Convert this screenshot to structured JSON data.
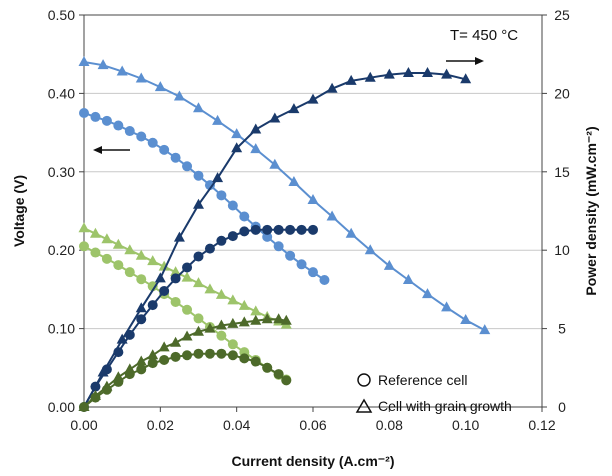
{
  "chart_data": {
    "type": "line",
    "xlabel": "Current density (A.cm⁻²)",
    "ylabel_left": "Voltage (V)",
    "ylabel_right": "Power density (mW.cm⁻²)",
    "xlim": [
      0,
      0.12
    ],
    "ylim_left": [
      0,
      0.5
    ],
    "ylim_right": [
      0,
      25
    ],
    "x_ticks": [
      "0.00",
      "0.02",
      "0.04",
      "0.06",
      "0.08",
      "0.10",
      "0.12"
    ],
    "y_left_ticks": [
      "0.00",
      "0.10",
      "0.20",
      "0.30",
      "0.40",
      "0.50"
    ],
    "y_right_ticks": [
      "0",
      "5",
      "10",
      "15",
      "20",
      "25"
    ],
    "annotation": "T= 450 °C",
    "legend": {
      "position": "bottom-right",
      "entries": [
        {
          "marker": "circle",
          "label": "Reference cell"
        },
        {
          "marker": "triangle",
          "label": "Cell with grain growth"
        }
      ]
    },
    "colors": {
      "light_blue": "#5b8fd0",
      "dark_navy": "#1a3a6b",
      "light_green": "#9dc46a",
      "dark_green": "#4d6a2a"
    },
    "series": [
      {
        "cell": "grain growth",
        "quantity": "voltage",
        "axis": "left",
        "marker": "triangle",
        "color": "#5b8fd0",
        "x": [
          0.0,
          0.005,
          0.01,
          0.015,
          0.02,
          0.025,
          0.03,
          0.035,
          0.04,
          0.045,
          0.05,
          0.055,
          0.06,
          0.065,
          0.07,
          0.075,
          0.08,
          0.085,
          0.09,
          0.095,
          0.1,
          0.105
        ],
        "y": [
          0.44,
          0.436,
          0.428,
          0.419,
          0.408,
          0.396,
          0.381,
          0.365,
          0.348,
          0.329,
          0.309,
          0.287,
          0.264,
          0.243,
          0.221,
          0.2,
          0.18,
          0.162,
          0.144,
          0.127,
          0.111,
          0.098
        ]
      },
      {
        "cell": "reference",
        "quantity": "voltage",
        "axis": "left",
        "marker": "circle",
        "color": "#5b8fd0",
        "x": [
          0.0,
          0.003,
          0.006,
          0.009,
          0.012,
          0.015,
          0.018,
          0.021,
          0.024,
          0.027,
          0.03,
          0.033,
          0.036,
          0.039,
          0.042,
          0.045,
          0.048,
          0.051,
          0.054,
          0.057,
          0.06,
          0.063
        ],
        "y": [
          0.375,
          0.37,
          0.365,
          0.359,
          0.352,
          0.345,
          0.337,
          0.328,
          0.318,
          0.307,
          0.295,
          0.283,
          0.27,
          0.257,
          0.243,
          0.23,
          0.217,
          0.205,
          0.193,
          0.182,
          0.172,
          0.162
        ]
      },
      {
        "cell": "grain growth",
        "quantity": "voltage",
        "axis": "left",
        "marker": "triangle",
        "color": "#9dc46a",
        "x": [
          0.0,
          0.003,
          0.006,
          0.009,
          0.012,
          0.015,
          0.018,
          0.021,
          0.024,
          0.027,
          0.03,
          0.033,
          0.036,
          0.039,
          0.042,
          0.045,
          0.048,
          0.051,
          0.053
        ],
        "y": [
          0.228,
          0.221,
          0.214,
          0.207,
          0.2,
          0.193,
          0.186,
          0.179,
          0.172,
          0.165,
          0.158,
          0.15,
          0.143,
          0.136,
          0.129,
          0.122,
          0.115,
          0.109,
          0.105
        ]
      },
      {
        "cell": "reference",
        "quantity": "voltage",
        "axis": "left",
        "marker": "circle",
        "color": "#9dc46a",
        "x": [
          0.0,
          0.003,
          0.006,
          0.009,
          0.012,
          0.015,
          0.018,
          0.021,
          0.024,
          0.027,
          0.03,
          0.033,
          0.036,
          0.039,
          0.042,
          0.045,
          0.048,
          0.051,
          0.053
        ],
        "y": [
          0.205,
          0.197,
          0.189,
          0.181,
          0.172,
          0.163,
          0.154,
          0.144,
          0.134,
          0.124,
          0.113,
          0.102,
          0.091,
          0.08,
          0.07,
          0.06,
          0.05,
          0.041,
          0.035
        ]
      },
      {
        "cell": "grain growth",
        "quantity": "power density",
        "axis": "right",
        "marker": "triangle",
        "color": "#1a3a6b",
        "x": [
          0.0,
          0.005,
          0.01,
          0.015,
          0.02,
          0.025,
          0.03,
          0.035,
          0.04,
          0.045,
          0.05,
          0.055,
          0.06,
          0.065,
          0.07,
          0.075,
          0.08,
          0.085,
          0.09,
          0.095,
          0.1
        ],
        "y": [
          0.0,
          2.2,
          4.3,
          6.3,
          8.2,
          10.8,
          12.9,
          14.6,
          16.5,
          17.7,
          18.4,
          19.0,
          19.6,
          20.3,
          20.8,
          21.0,
          21.2,
          21.3,
          21.3,
          21.2,
          20.9
        ]
      },
      {
        "cell": "reference",
        "quantity": "power density",
        "axis": "right",
        "marker": "circle",
        "color": "#1a3a6b",
        "x": [
          0.0,
          0.003,
          0.006,
          0.009,
          0.012,
          0.015,
          0.018,
          0.021,
          0.024,
          0.027,
          0.03,
          0.033,
          0.036,
          0.039,
          0.042,
          0.045,
          0.048,
          0.051,
          0.054,
          0.057,
          0.06
        ],
        "y": [
          0.0,
          1.3,
          2.4,
          3.5,
          4.6,
          5.6,
          6.5,
          7.4,
          8.2,
          8.9,
          9.6,
          10.1,
          10.6,
          10.9,
          11.2,
          11.3,
          11.3,
          11.3,
          11.3,
          11.3,
          11.3
        ]
      },
      {
        "cell": "grain growth",
        "quantity": "power density",
        "axis": "right",
        "marker": "triangle",
        "color": "#4d6a2a",
        "x": [
          0.0,
          0.003,
          0.006,
          0.009,
          0.012,
          0.015,
          0.018,
          0.021,
          0.024,
          0.027,
          0.03,
          0.033,
          0.036,
          0.039,
          0.042,
          0.045,
          0.048,
          0.051,
          0.053
        ],
        "y": [
          0.0,
          0.7,
          1.3,
          1.9,
          2.4,
          2.9,
          3.3,
          3.8,
          4.1,
          4.5,
          4.8,
          5.0,
          5.2,
          5.3,
          5.4,
          5.5,
          5.6,
          5.6,
          5.5
        ]
      },
      {
        "cell": "reference",
        "quantity": "power density",
        "axis": "right",
        "marker": "circle",
        "color": "#4d6a2a",
        "x": [
          0.0,
          0.003,
          0.006,
          0.009,
          0.012,
          0.015,
          0.018,
          0.021,
          0.024,
          0.027,
          0.03,
          0.033,
          0.036,
          0.039,
          0.042,
          0.045,
          0.048,
          0.051,
          0.053
        ],
        "y": [
          0.0,
          0.6,
          1.1,
          1.6,
          2.1,
          2.4,
          2.8,
          3.0,
          3.2,
          3.3,
          3.4,
          3.4,
          3.4,
          3.3,
          3.1,
          2.9,
          2.5,
          2.1,
          1.7
        ]
      }
    ]
  }
}
